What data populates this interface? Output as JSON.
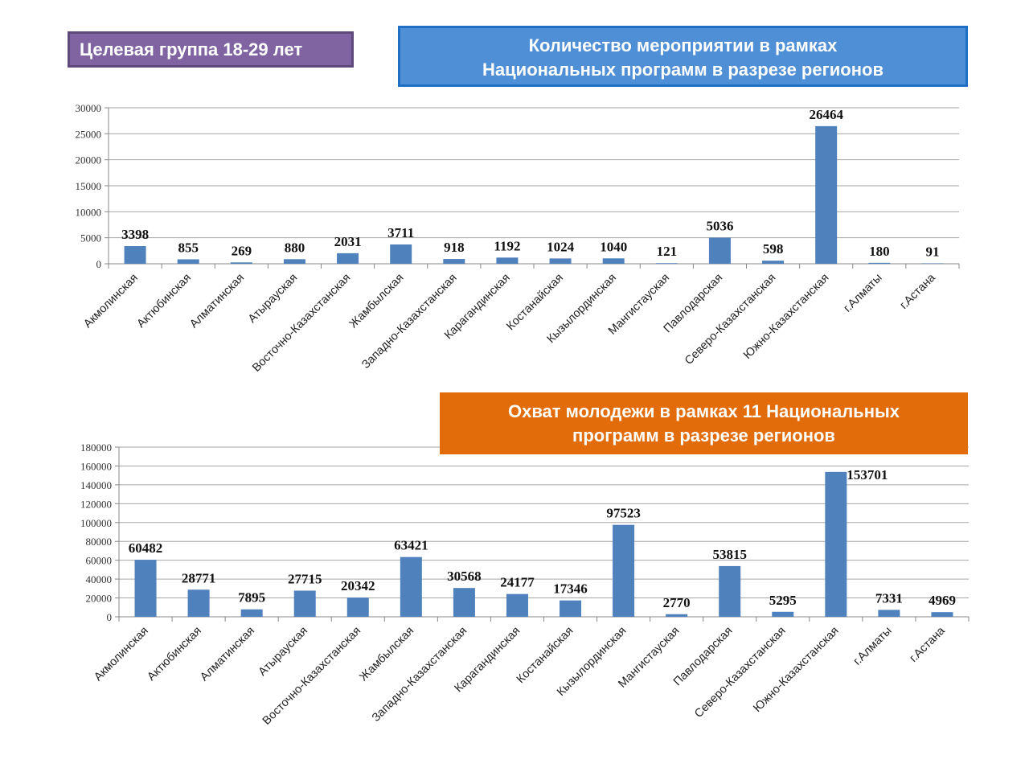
{
  "header": {
    "target_group": "Целевая группа 18-29 лет"
  },
  "colors": {
    "bar": "#4f81bd",
    "purple": "#8064a2",
    "blue": "#4f8fd6",
    "orange": "#e36c0a"
  },
  "chart_data": [
    {
      "type": "bar",
      "title_lines": [
        "Количество  мероприятии в рамках",
        "Национальных программ в разрезе  регионов"
      ],
      "categories": [
        "Акмолинская",
        "Актюбинская",
        "Алматинская",
        "Атырауская",
        "Восточно-Казахстанская",
        "Жамбылская",
        "Западно-Казахстанская",
        "Карагандинская",
        "Костанайская",
        "Кызылординская",
        "Мангистауская",
        "Павлодарская",
        "Северо-Казахстанская",
        "Южно-Казахстанская",
        "г.Алматы",
        "г.Астана"
      ],
      "values": [
        3398,
        855,
        269,
        880,
        2031,
        3711,
        918,
        1192,
        1024,
        1040,
        121,
        5036,
        598,
        26464,
        180,
        91
      ],
      "ylim": [
        0,
        30000
      ],
      "yticks": [
        0,
        5000,
        10000,
        15000,
        20000,
        25000,
        30000
      ],
      "grid": true
    },
    {
      "type": "bar",
      "title_lines": [
        "Охват молодежи в рамках 11 Национальных",
        "программ в разрезе регионов"
      ],
      "categories": [
        "Акмолинская",
        "Актюбинская",
        "Алматинская",
        "Атырауская",
        "Восточно-Казахстанская",
        "Жамбылская",
        "Западно-Казахстанская",
        "Карагандинская",
        "Костанайская",
        "Кызылординская",
        "Мангистауская",
        "Павлодарская",
        "Северо-Казахстанская",
        "Южно-Казахстанская",
        "г.Алматы",
        "г.Астана"
      ],
      "values": [
        60482,
        28771,
        7895,
        27715,
        20342,
        63421,
        30568,
        24177,
        17346,
        97523,
        2770,
        53815,
        5295,
        153701,
        7331,
        4969
      ],
      "ylim": [
        0,
        180000
      ],
      "yticks": [
        0,
        20000,
        40000,
        60000,
        80000,
        100000,
        120000,
        140000,
        160000,
        180000
      ],
      "grid": true
    }
  ]
}
